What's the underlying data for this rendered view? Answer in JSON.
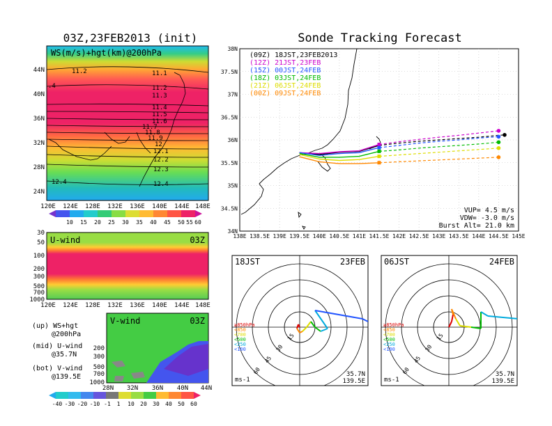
{
  "ws_panel": {
    "title": "03Z,23FEB2013 (init)",
    "label": "WS(m/s)+hgt(km)@200hPa",
    "lat_ticks": [
      "44N",
      "40N",
      "36N",
      "32N",
      "28N",
      "24N"
    ],
    "lon_ticks": [
      "120E",
      "124E",
      "128E",
      "132E",
      "136E",
      "140E",
      "144E",
      "148E"
    ],
    "contour_labels": [
      "11.2",
      "11.1",
      "11.2",
      "11.3",
      "11.4",
      "11.5",
      "11.6",
      "11.7",
      "11.8",
      "11.9",
      "12",
      "12.1",
      "12.2",
      "12.3",
      "12.4",
      "12.4",
      ".4"
    ],
    "colorbar_labels": [
      "10",
      "15",
      "20",
      "25",
      "30",
      "35",
      "40",
      "45",
      "50",
      "55",
      "60"
    ]
  },
  "u_panel": {
    "label": "U-wind",
    "time": "03Z",
    "y_ticks": [
      "30",
      "50",
      "100",
      "200",
      "300",
      "500",
      "700",
      "1000"
    ],
    "lon_ticks": [
      "120E",
      "124E",
      "128E",
      "132E",
      "136E",
      "140E",
      "144E",
      "148E"
    ]
  },
  "v_panel": {
    "label": "V-wind",
    "time": "03Z",
    "y_ticks": [
      "200",
      "300",
      "500",
      "700",
      "1000"
    ],
    "lat_ticks": [
      "28N",
      "32N",
      "36N",
      "40N",
      "44N"
    ]
  },
  "legend_notes": {
    "up1": "(up) WS+hgt",
    "up2": "@200hPa",
    "mid1": "(mid) U-wind",
    "mid2": "@35.7N",
    "bot1": "(bot) V-wind",
    "bot2": "@139.5E"
  },
  "bottom_colorbar": [
    "-40",
    "-30",
    "-20",
    "-10",
    "-1",
    "1",
    "10",
    "20",
    "30",
    "40",
    "50",
    "60"
  ],
  "forecast": {
    "title": "Sonde Tracking Forecast",
    "info_vup": "VUP= 4.5 m/s",
    "info_vdw": "VDW= -3.0 m/s",
    "info_burst": "Burst Alt= 21.0 km"
  },
  "chart_data": {
    "type": "line",
    "title": "Sonde Tracking Forecast",
    "xlabel": "",
    "ylabel": "",
    "xlim": [
      138,
      145
    ],
    "ylim": [
      34,
      38
    ],
    "x_ticks": [
      "138E",
      "138.5E",
      "139E",
      "139.5E",
      "140E",
      "140.5E",
      "141E",
      "141.5E",
      "142E",
      "142.5E",
      "143E",
      "143.5E",
      "144E",
      "144.5E",
      "145E"
    ],
    "y_ticks": [
      "34N",
      "34.5N",
      "35N",
      "35.5N",
      "36N",
      "36.5N",
      "37N",
      "37.5N",
      "38N"
    ],
    "grid": true,
    "legend_position": "top-left",
    "series": [
      {
        "name": "(09Z) 18JST,23FEB2013",
        "color": "#000000",
        "x": [
          139.5,
          140.0,
          140.5,
          141.0,
          141.5,
          142.0,
          142.5,
          143.0,
          143.5,
          144.0,
          144.5,
          144.65
        ],
        "y": [
          35.72,
          35.68,
          35.73,
          35.75,
          35.88,
          35.93,
          35.97,
          36.0,
          36.03,
          36.06,
          36.1,
          36.11
        ]
      },
      {
        "name": "(12Z) 21JST,23FEB",
        "color": "#cc00cc",
        "x": [
          139.5,
          140.0,
          140.5,
          141.0,
          141.5,
          142.0,
          142.5,
          143.0,
          143.5,
          144.0,
          144.5
        ],
        "y": [
          35.72,
          35.7,
          35.74,
          35.76,
          35.9,
          35.96,
          36.01,
          36.06,
          36.1,
          36.15,
          36.2
        ]
      },
      {
        "name": "(15Z) 00JST,24FEB",
        "color": "#2255ff",
        "x": [
          139.5,
          140.0,
          140.5,
          141.0,
          141.5,
          142.0,
          142.5,
          143.0,
          143.5,
          144.0,
          144.5
        ],
        "y": [
          35.72,
          35.66,
          35.7,
          35.72,
          35.83,
          35.88,
          35.93,
          35.97,
          36.0,
          36.04,
          36.07
        ]
      },
      {
        "name": "(18Z) 03JST,24FEB",
        "color": "#00bb00",
        "x": [
          139.5,
          140.0,
          140.5,
          141.0,
          141.5,
          142.0,
          142.5,
          143.0,
          143.5,
          144.0,
          144.5
        ],
        "y": [
          35.7,
          35.62,
          35.62,
          35.64,
          35.75,
          35.78,
          35.82,
          35.85,
          35.88,
          35.91,
          35.95
        ]
      },
      {
        "name": "(21Z) 06JST,24FEB",
        "color": "#dddd00",
        "x": [
          139.5,
          140.0,
          140.5,
          141.0,
          141.5,
          142.0,
          142.5,
          143.0,
          143.5,
          144.0,
          144.5
        ],
        "y": [
          35.68,
          35.58,
          35.55,
          35.57,
          35.64,
          35.67,
          35.7,
          35.73,
          35.76,
          35.79,
          35.82
        ]
      },
      {
        "name": "(00Z) 09JST,24FEB",
        "color": "#ff8800",
        "x": [
          139.5,
          140.0,
          140.5,
          141.0,
          141.5,
          142.0,
          142.5,
          143.0,
          143.5,
          144.0,
          144.5
        ],
        "y": [
          35.63,
          35.52,
          35.48,
          35.48,
          35.5,
          35.52,
          35.54,
          35.56,
          35.58,
          35.6,
          35.62
        ]
      }
    ]
  },
  "hodographs": [
    {
      "time": "18JST",
      "date": "23FEB",
      "lat": "35.7N",
      "lon": "139.5E",
      "units": "ms-1",
      "ring_labels": [
        "15",
        "30",
        "45",
        "60"
      ],
      "levels": [
        {
          "label": "≥850hPa",
          "color": "#dd0000"
        },
        {
          "label": "<850",
          "color": "#ff8800"
        },
        {
          "label": "<700",
          "color": "#dddd00"
        },
        {
          "label": "<500",
          "color": "#00bb00"
        },
        {
          "label": "<250",
          "color": "#00aadd"
        },
        {
          "label": "<100",
          "color": "#2255ff"
        }
      ]
    },
    {
      "time": "06JST",
      "date": "24FEB",
      "lat": "35.7N",
      "lon": "139.5E",
      "units": "ms-1",
      "ring_labels": [
        "15",
        "30",
        "45",
        "60"
      ],
      "levels": [
        {
          "label": "≥850hPa",
          "color": "#dd0000"
        },
        {
          "label": "<850",
          "color": "#ff8800"
        },
        {
          "label": "<700",
          "color": "#dddd00"
        },
        {
          "label": "<500",
          "color": "#00bb00"
        },
        {
          "label": "<250",
          "color": "#00aadd"
        },
        {
          "label": "<100",
          "color": "#2255ff"
        }
      ]
    }
  ]
}
